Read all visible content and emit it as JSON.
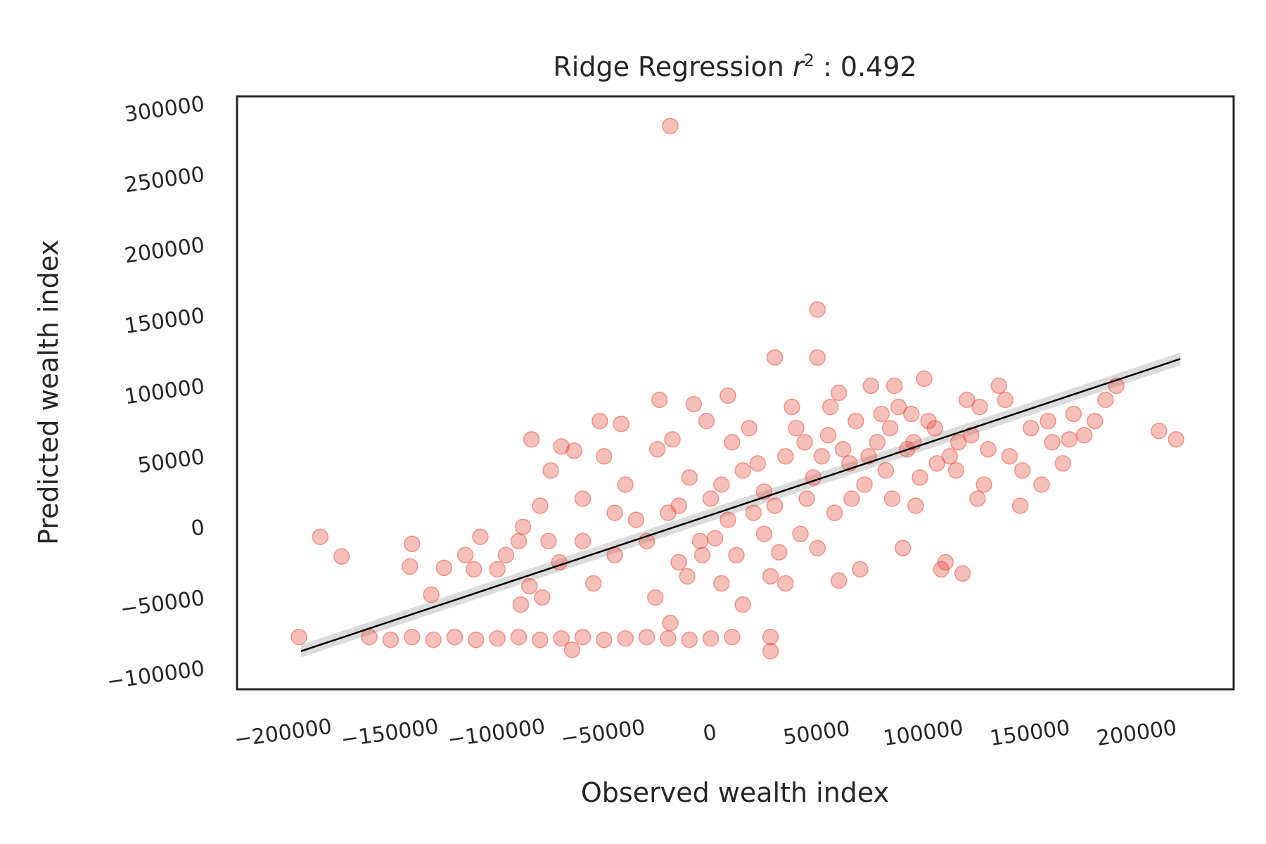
{
  "colors": {
    "points": "#e8473a",
    "fit_line": "#000000",
    "ci_band": "#bdbdbd",
    "axes": "#262626",
    "background": "#ffffff"
  },
  "chart_data": {
    "type": "scatter",
    "title": "Ridge Regression r² : 0.492",
    "title_parts": {
      "prefix": "Ridge Regression ",
      "var": "r",
      "sup": "2",
      "suffix": " : 0.492"
    },
    "xlabel": "Observed wealth index",
    "ylabel": "Predicted wealth index",
    "xlim": [
      -222000,
      245000
    ],
    "ylim": [
      -115000,
      305000
    ],
    "xticks": [
      -200000,
      -150000,
      -100000,
      -50000,
      0,
      50000,
      100000,
      150000,
      200000
    ],
    "xtick_labels": [
      "−200000",
      "−150000",
      "−100000",
      "−50000",
      "0",
      "50000",
      "100000",
      "150000",
      "200000"
    ],
    "yticks": [
      -100000,
      -50000,
      0,
      50000,
      100000,
      150000,
      200000,
      250000,
      300000
    ],
    "ytick_labels": [
      "−100000",
      "−50000",
      "0",
      "50000",
      "100000",
      "150000",
      "200000",
      "250000",
      "300000"
    ],
    "grid": false,
    "legend": "none",
    "regression_line": {
      "x": [
        -192000,
        220000
      ],
      "y": [
        -88000,
        119000
      ]
    },
    "series": [
      {
        "points": [
          [
            -19000,
            284000
          ],
          [
            50000,
            154000
          ],
          [
            30000,
            120000
          ],
          [
            50000,
            120000
          ],
          [
            -183000,
            -7000
          ],
          [
            -173000,
            -21000
          ],
          [
            -193000,
            -78000
          ],
          [
            -140000,
            -12000
          ],
          [
            -141000,
            -28000
          ],
          [
            -131000,
            -48000
          ],
          [
            -125000,
            -29000
          ],
          [
            -111000,
            -30000
          ],
          [
            -108000,
            -7000
          ],
          [
            -96000,
            -20000
          ],
          [
            -88000,
            0
          ],
          [
            -84000,
            62000
          ],
          [
            -70000,
            57000
          ],
          [
            -64000,
            54000
          ],
          [
            -80000,
            15000
          ],
          [
            -76000,
            -10000
          ],
          [
            -71000,
            -25000
          ],
          [
            -85000,
            -42000
          ],
          [
            -89000,
            -55000
          ],
          [
            -79000,
            -50000
          ],
          [
            -60000,
            -10000
          ],
          [
            -52000,
            75000
          ],
          [
            -42000,
            73000
          ],
          [
            -40000,
            30000
          ],
          [
            -24000,
            90000
          ],
          [
            -18000,
            62000
          ],
          [
            -8000,
            87000
          ],
          [
            -2000,
            75000
          ],
          [
            8000,
            93000
          ],
          [
            -11000,
            -35000
          ],
          [
            -26000,
            -50000
          ],
          [
            -19000,
            -68000
          ],
          [
            -4000,
            -20000
          ],
          [
            2000,
            -8000
          ],
          [
            5000,
            30000
          ],
          [
            10000,
            60000
          ],
          [
            15000,
            40000
          ],
          [
            20000,
            10000
          ],
          [
            25000,
            -5000
          ],
          [
            28000,
            -35000
          ],
          [
            35000,
            50000
          ],
          [
            40000,
            70000
          ],
          [
            45000,
            20000
          ],
          [
            50000,
            -15000
          ],
          [
            55000,
            65000
          ],
          [
            60000,
            95000
          ],
          [
            65000,
            45000
          ],
          [
            70000,
            -30000
          ],
          [
            75000,
            100000
          ],
          [
            80000,
            80000
          ],
          [
            85000,
            20000
          ],
          [
            90000,
            -15000
          ],
          [
            95000,
            60000
          ],
          [
            100000,
            105000
          ],
          [
            105000,
            70000
          ],
          [
            110000,
            -25000
          ],
          [
            115000,
            40000
          ],
          [
            120000,
            90000
          ],
          [
            125000,
            20000
          ],
          [
            130000,
            55000
          ],
          [
            135000,
            100000
          ],
          [
            140000,
            50000
          ],
          [
            145000,
            15000
          ],
          [
            150000,
            70000
          ],
          [
            155000,
            30000
          ],
          [
            160000,
            60000
          ],
          [
            165000,
            45000
          ],
          [
            170000,
            80000
          ],
          [
            175000,
            65000
          ],
          [
            180000,
            75000
          ],
          [
            185000,
            90000
          ],
          [
            210000,
            68000
          ],
          [
            218000,
            62000
          ],
          [
            190000,
            100000
          ],
          [
            118000,
            -33000
          ],
          [
            108000,
            -30000
          ],
          [
            60000,
            -38000
          ],
          [
            35000,
            -40000
          ],
          [
            28000,
            -78000
          ],
          [
            28000,
            -88000
          ],
          [
            -160000,
            -78000
          ],
          [
            -150000,
            -80000
          ],
          [
            -140000,
            -78000
          ],
          [
            -130000,
            -80000
          ],
          [
            -120000,
            -78000
          ],
          [
            -110000,
            -80000
          ],
          [
            -100000,
            -79000
          ],
          [
            -90000,
            -78000
          ],
          [
            -80000,
            -80000
          ],
          [
            -70000,
            -79000
          ],
          [
            -60000,
            -78000
          ],
          [
            -50000,
            -80000
          ],
          [
            -40000,
            -79000
          ],
          [
            -30000,
            -78000
          ],
          [
            -20000,
            -79000
          ],
          [
            -10000,
            -80000
          ],
          [
            0,
            -79000
          ],
          [
            10000,
            -78000
          ],
          [
            -65000,
            -87000
          ],
          [
            -100000,
            -30000
          ],
          [
            -60000,
            20000
          ],
          [
            -35000,
            5000
          ],
          [
            -15000,
            15000
          ],
          [
            -5000,
            -10000
          ],
          [
            0,
            20000
          ],
          [
            12000,
            -20000
          ],
          [
            18000,
            70000
          ],
          [
            22000,
            45000
          ],
          [
            30000,
            15000
          ],
          [
            42000,
            -5000
          ],
          [
            48000,
            35000
          ],
          [
            58000,
            10000
          ],
          [
            62000,
            55000
          ],
          [
            68000,
            75000
          ],
          [
            72000,
            30000
          ],
          [
            78000,
            60000
          ],
          [
            82000,
            40000
          ],
          [
            88000,
            85000
          ],
          [
            92000,
            55000
          ],
          [
            98000,
            35000
          ],
          [
            102000,
            75000
          ],
          [
            112000,
            50000
          ],
          [
            122000,
            65000
          ],
          [
            128000,
            30000
          ],
          [
            138000,
            90000
          ],
          [
            -55000,
            -40000
          ],
          [
            -45000,
            -20000
          ],
          [
            -30000,
            -10000
          ],
          [
            -20000,
            10000
          ],
          [
            -10000,
            35000
          ],
          [
            5000,
            -40000
          ],
          [
            15000,
            -55000
          ],
          [
            25000,
            25000
          ],
          [
            38000,
            85000
          ],
          [
            52000,
            50000
          ],
          [
            66000,
            20000
          ],
          [
            86000,
            100000
          ],
          [
            96000,
            15000
          ],
          [
            106000,
            45000
          ],
          [
            -75000,
            40000
          ],
          [
            -50000,
            50000
          ],
          [
            -25000,
            55000
          ],
          [
            -90000,
            -10000
          ],
          [
            -115000,
            -20000
          ],
          [
            -45000,
            10000
          ],
          [
            -15000,
            -25000
          ],
          [
            8000,
            5000
          ],
          [
            32000,
            -18000
          ],
          [
            44000,
            60000
          ],
          [
            56000,
            85000
          ],
          [
            74000,
            50000
          ],
          [
            84000,
            70000
          ],
          [
            94000,
            80000
          ],
          [
            116000,
            60000
          ],
          [
            126000,
            85000
          ],
          [
            146000,
            40000
          ],
          [
            158000,
            75000
          ],
          [
            168000,
            62000
          ]
        ]
      }
    ]
  }
}
